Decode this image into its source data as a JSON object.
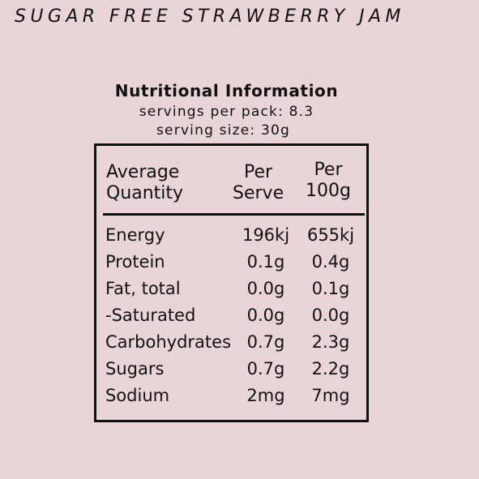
{
  "product_name": "SUGAR FREE STRAWBERRY JAM",
  "panel": {
    "title": "Nutritional Information",
    "servings_per_pack": "servings per pack: 8.3",
    "serving_size": "serving size: 30g"
  },
  "table": {
    "headers": {
      "quantity_line1": "Average",
      "quantity_line2": "Quantity",
      "serve_line1": "Per",
      "serve_line2": "Serve",
      "per100_line1": "Per",
      "per100_line2": "100g"
    },
    "rows": [
      {
        "label": "Energy",
        "per_serve": "196kj",
        "per_100g": "655kj"
      },
      {
        "label": "Protein",
        "per_serve": "0.1g",
        "per_100g": "0.4g"
      },
      {
        "label": "Fat, total",
        "per_serve": "0.0g",
        "per_100g": "0.1g"
      },
      {
        "label": "-Saturated",
        "per_serve": "0.0g",
        "per_100g": "0.0g"
      },
      {
        "label": "Carbohydrates",
        "per_serve": "0.7g",
        "per_100g": "2.3g"
      },
      {
        "label": "Sugars",
        "per_serve": "0.7g",
        "per_100g": "2.2g"
      },
      {
        "label": "Sodium",
        "per_serve": "2mg",
        "per_100g": "7mg"
      }
    ]
  },
  "colors": {
    "background": "#e9d5d7",
    "text": "#111111"
  }
}
